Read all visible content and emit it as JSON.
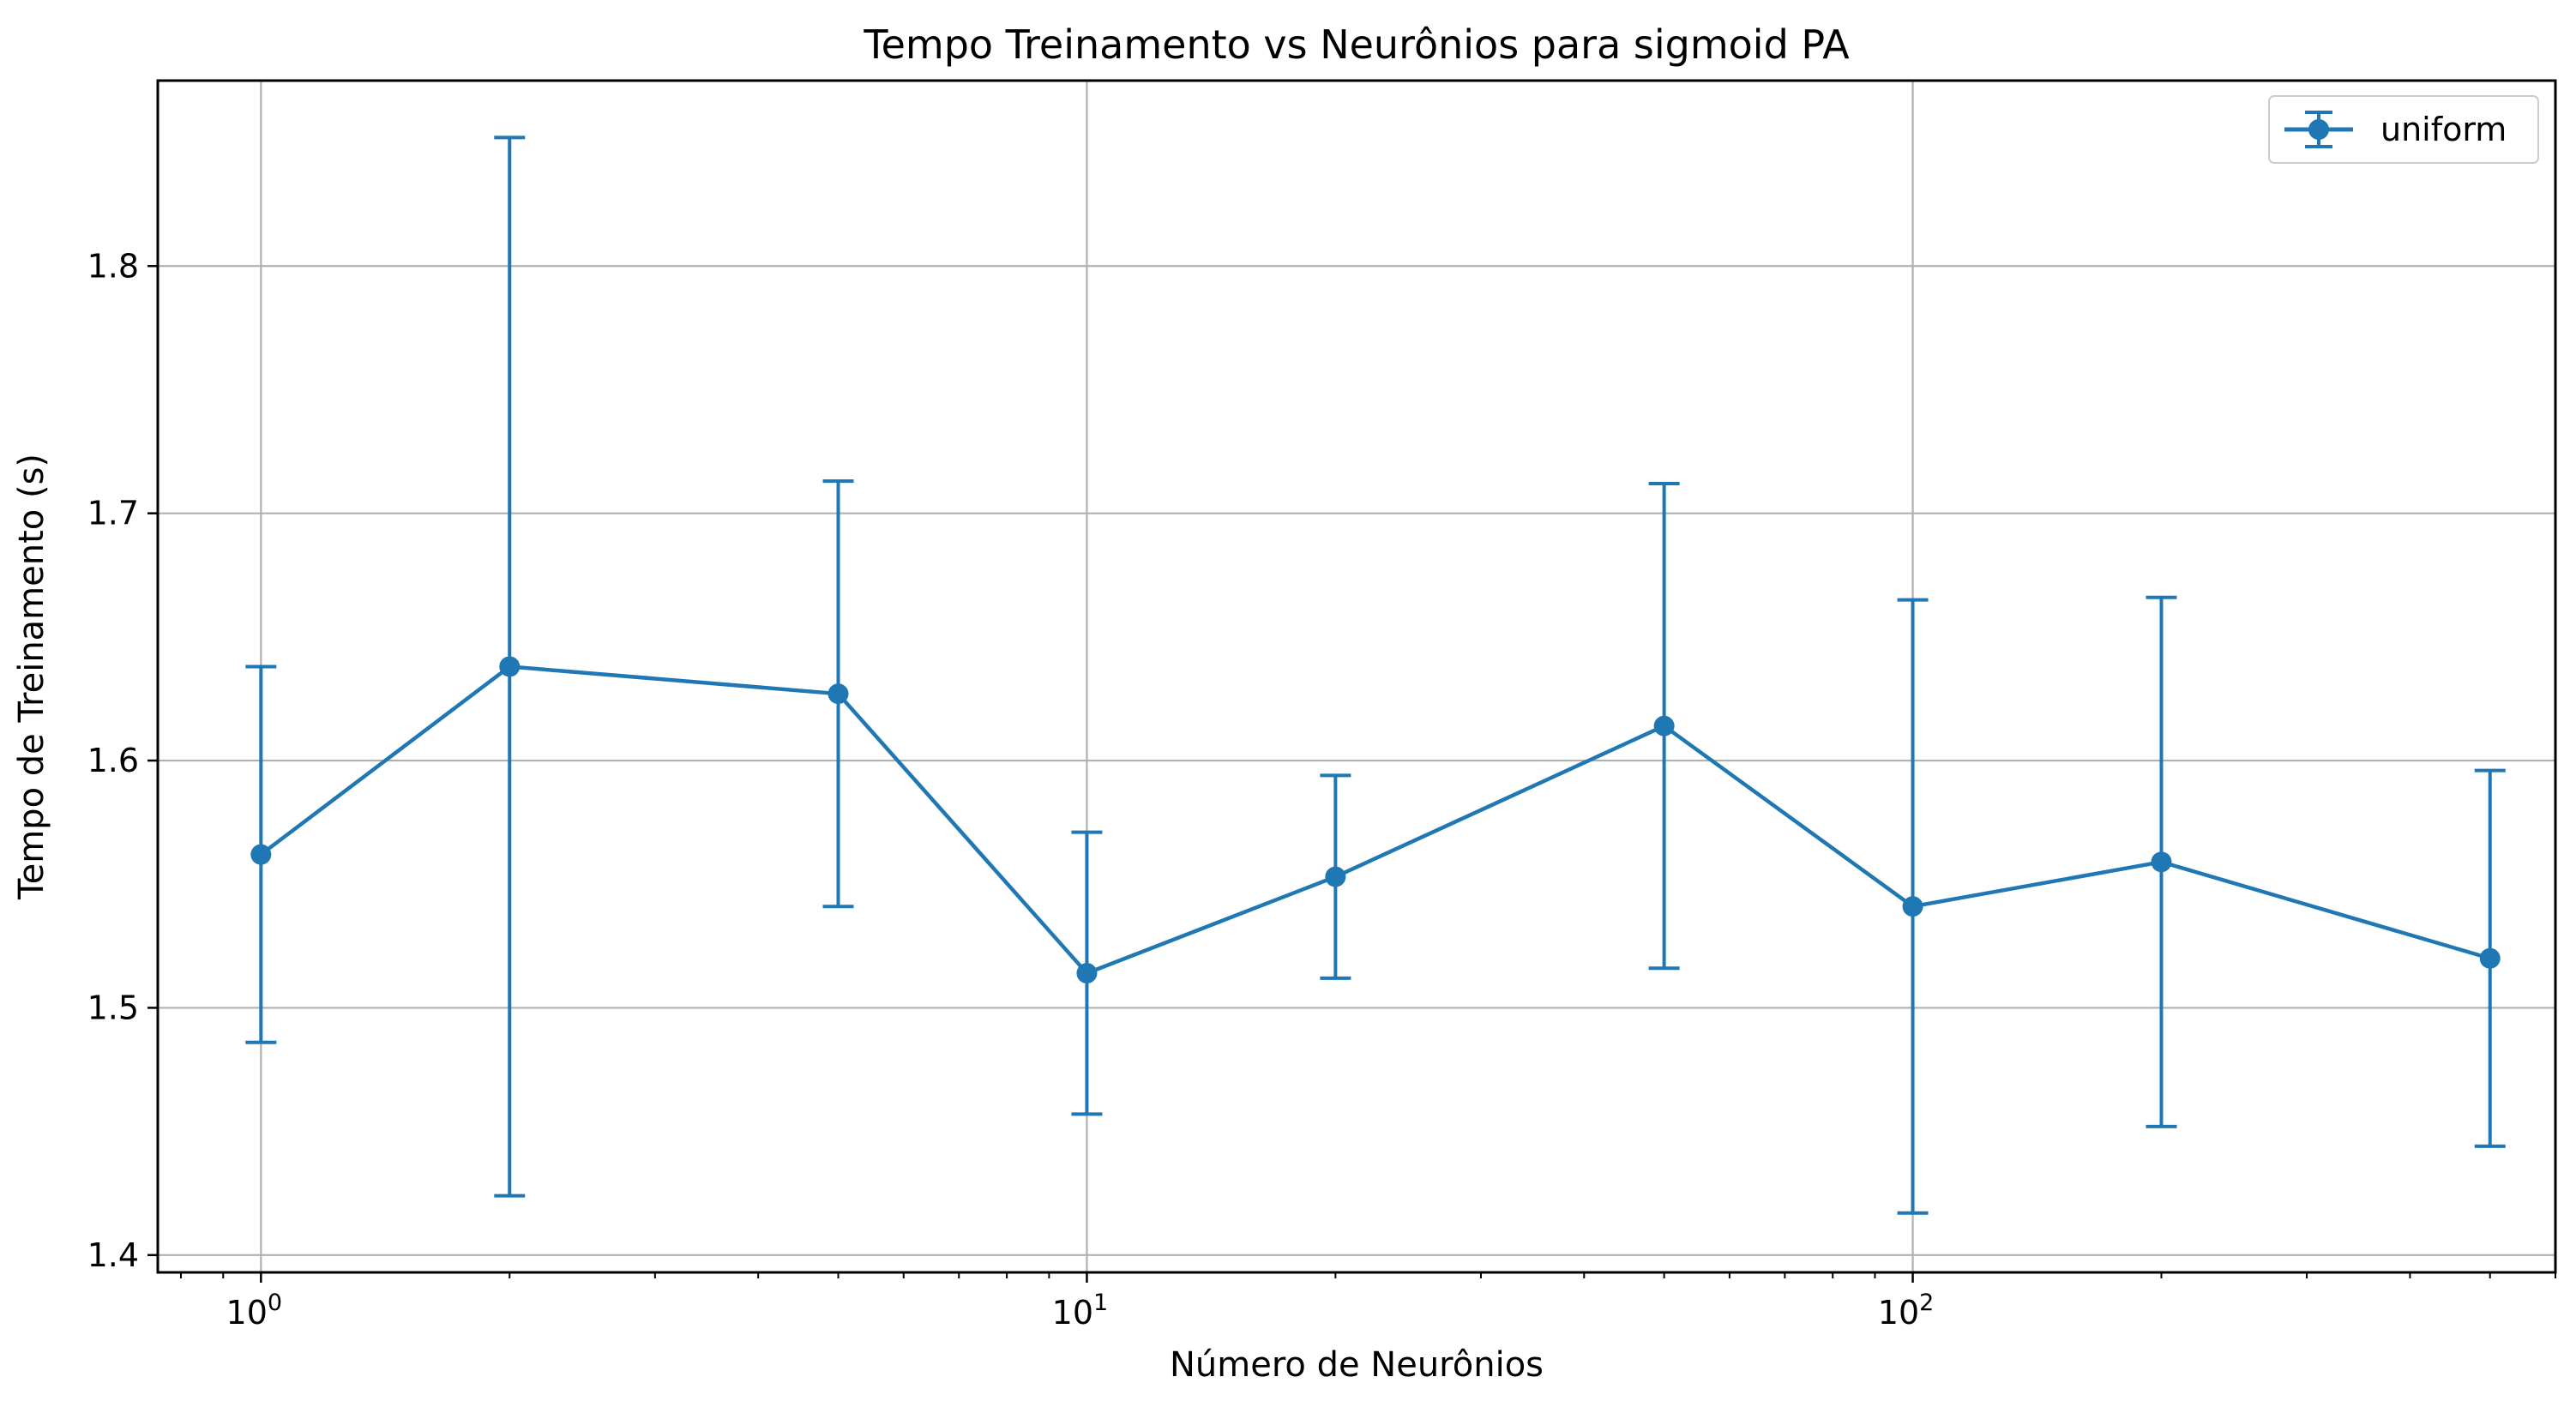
{
  "chart_data": {
    "type": "line",
    "title": "Tempo Treinamento vs Neurônios para sigmoid PA",
    "xlabel": "Número de Neurônios",
    "ylabel": "Tempo de Treinamento (s)",
    "xscale": "log",
    "xlim": [
      0.75,
      600
    ],
    "ylim": [
      1.393,
      1.875
    ],
    "grid": true,
    "legend_position": "top-right",
    "x_ticks": [
      {
        "value": 1,
        "base": "10",
        "exp": "0"
      },
      {
        "value": 10,
        "base": "10",
        "exp": "1"
      },
      {
        "value": 100,
        "base": "10",
        "exp": "2"
      }
    ],
    "y_ticks": [
      {
        "value": 1.4,
        "label": "1.4"
      },
      {
        "value": 1.5,
        "label": "1.5"
      },
      {
        "value": 1.6,
        "label": "1.6"
      },
      {
        "value": 1.7,
        "label": "1.7"
      },
      {
        "value": 1.8,
        "label": "1.8"
      }
    ],
    "series": [
      {
        "name": "uniform",
        "color": "#1f77b4",
        "marker": "circle",
        "x": [
          1,
          2,
          5,
          10,
          20,
          50,
          100,
          200,
          500
        ],
        "y": [
          1.562,
          1.638,
          1.627,
          1.514,
          1.553,
          1.614,
          1.541,
          1.559,
          1.52
        ],
        "error": [
          0.076,
          0.214,
          0.086,
          0.057,
          0.041,
          0.098,
          0.124,
          0.107,
          0.076
        ]
      }
    ]
  }
}
